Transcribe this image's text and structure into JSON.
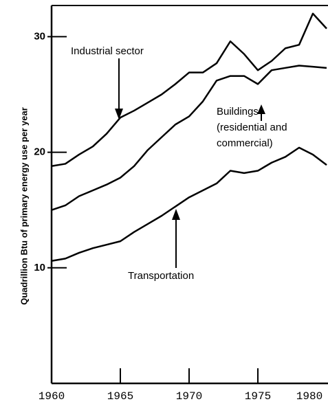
{
  "chart_data": {
    "type": "line",
    "ylabel": "Quadrillion Btu of primary energy use per year",
    "x": [
      1960,
      1961,
      1962,
      1963,
      1964,
      1965,
      1966,
      1967,
      1968,
      1969,
      1970,
      1971,
      1972,
      1973,
      1974,
      1975,
      1976,
      1977,
      1978,
      1979,
      1980
    ],
    "series": [
      {
        "name": "Industrial sector",
        "color": "#000000",
        "values": [
          18.8,
          19.0,
          19.8,
          20.5,
          21.6,
          23.0,
          23.6,
          24.3,
          25.0,
          25.9,
          26.9,
          26.9,
          27.7,
          29.6,
          28.5,
          27.1,
          27.9,
          29.0,
          29.3,
          32.0,
          30.7
        ]
      },
      {
        "name": "Buildings (residential and commercial)",
        "color": "#000000",
        "values": [
          15.0,
          15.4,
          16.2,
          16.7,
          17.2,
          17.8,
          18.8,
          20.2,
          21.3,
          22.4,
          23.1,
          24.4,
          26.2,
          26.6,
          26.6,
          25.9,
          27.1,
          27.3,
          27.5,
          27.4,
          27.3
        ]
      },
      {
        "name": "Transportation",
        "color": "#000000",
        "values": [
          10.6,
          10.8,
          11.3,
          11.7,
          12.0,
          12.3,
          13.1,
          13.8,
          14.5,
          15.3,
          16.1,
          16.7,
          17.3,
          18.4,
          18.2,
          18.4,
          19.1,
          19.6,
          20.4,
          19.8,
          18.9
        ]
      }
    ],
    "annotations": [
      {
        "text": [
          "Industrial sector"
        ]
      },
      {
        "text": [
          "Buildings",
          "(residential and",
          "commercial)"
        ]
      },
      {
        "text": [
          "Transportation"
        ]
      }
    ],
    "xlim": [
      1960,
      1980.1
    ],
    "xticks": [
      1960,
      1965,
      1970,
      1975,
      1980
    ],
    "ylim": [
      0,
      32.7
    ],
    "yticks": [
      10,
      20,
      30
    ]
  }
}
